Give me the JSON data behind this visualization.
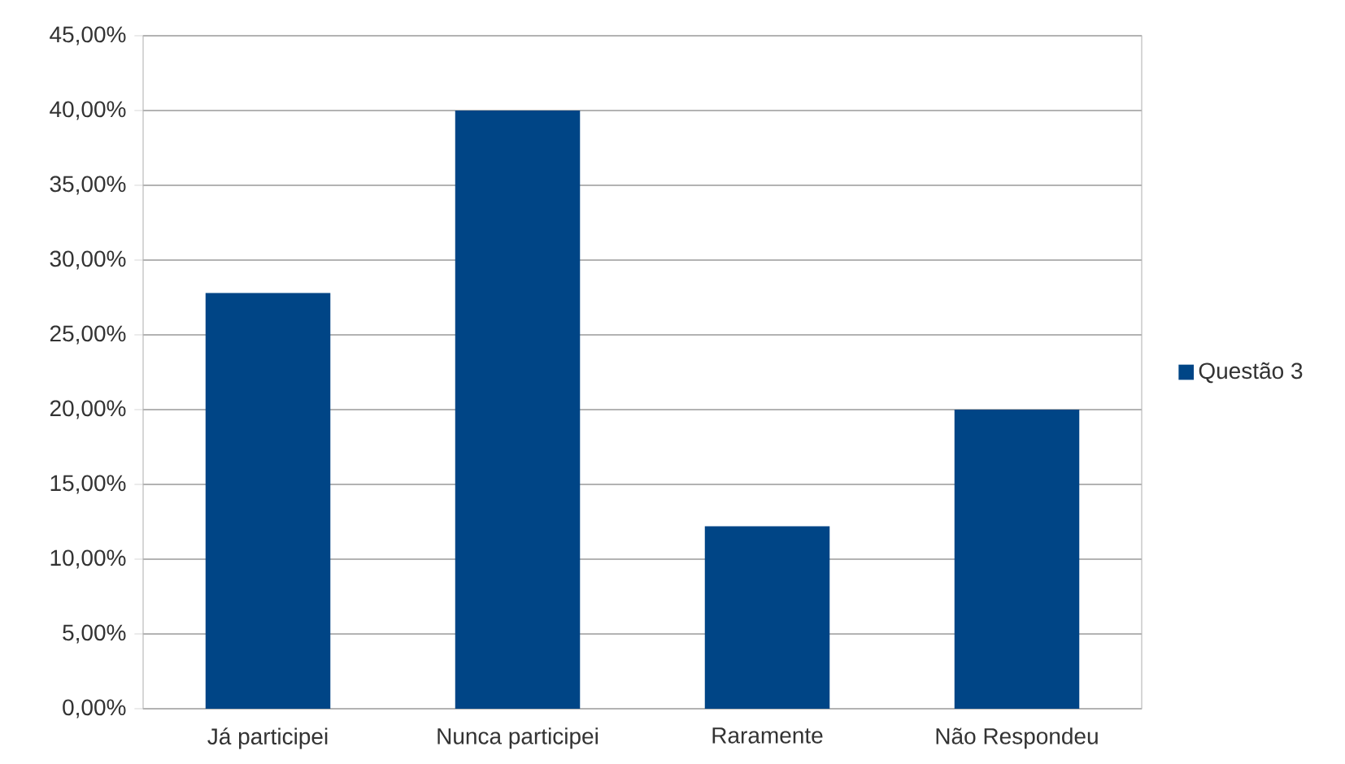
{
  "chart_data": {
    "type": "bar",
    "categories": [
      "Já participei",
      "Nunca participei",
      "Raramente",
      "Não Respondeu"
    ],
    "series": [
      {
        "name": "Questão 3",
        "color": "#004586",
        "values": [
          27.8,
          40,
          12.2,
          20
        ]
      }
    ],
    "ylim": [
      0,
      45
    ],
    "yticks": [
      {
        "value": 0,
        "label": "0,00%"
      },
      {
        "value": 5,
        "label": "5,00%"
      },
      {
        "value": 10,
        "label": "10,00%"
      },
      {
        "value": 15,
        "label": "15,00%"
      },
      {
        "value": 20,
        "label": "20,00%"
      },
      {
        "value": 25,
        "label": "25,00%"
      },
      {
        "value": 30,
        "label": "30,00%"
      },
      {
        "value": 35,
        "label": "35,00%"
      },
      {
        "value": 40,
        "label": "40,00%"
      },
      {
        "value": 45,
        "label": "45,00%"
      }
    ],
    "grid": "y",
    "legend": "right"
  }
}
